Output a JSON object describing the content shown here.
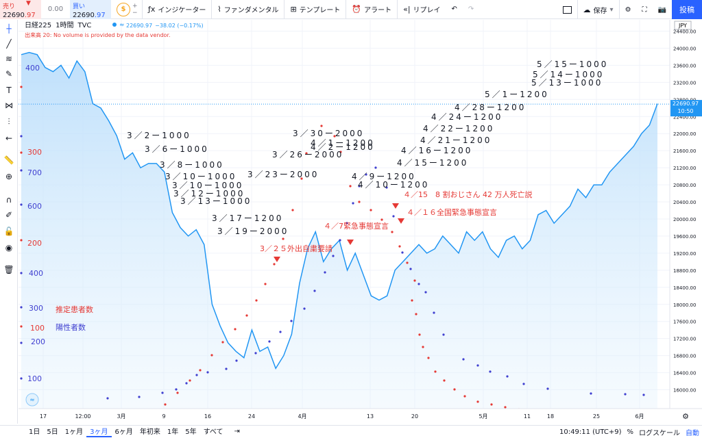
{
  "toolbar": {
    "sell_label": "売り",
    "sell_price_main": "22690",
    "sell_price_tail": ".97",
    "spread": "0.00",
    "buy_label": "買い",
    "buy_price_main": "22690",
    "buy_price_tail": ".97",
    "indicators": "インジケーター",
    "fundamentals": "ファンダメンタル",
    "template": "テンプレート",
    "alert": "アラート",
    "replay": "リプレイ",
    "save": "保存",
    "post": "投稿"
  },
  "legend": {
    "symbol": "日経225",
    "interval": "1時間",
    "source": "TVC",
    "price": "22690.97",
    "change": "−38.02 (−0.17%)",
    "volume_notice": "出来高 20: No volume is provided by the data vendor."
  },
  "price_axis": {
    "currency": "JPY",
    "ticks": [
      "24400.00",
      "24000.00",
      "23600.00",
      "23200.00",
      "22800.00",
      "22400.00",
      "22000.00",
      "21600.00",
      "21200.00",
      "20800.00",
      "20400.00",
      "20000.00",
      "19600.00",
      "19200.00",
      "18800.00",
      "18400.00",
      "18000.00",
      "17600.00",
      "17200.00",
      "16800.00",
      "16400.00",
      "16000.00"
    ],
    "last_price": "22690.97",
    "countdown": "10:50"
  },
  "time_axis": {
    "labels": [
      "17",
      "12:00",
      "3月",
      "9",
      "16",
      "24",
      "4月",
      "13",
      "20",
      "5月",
      "11",
      "18",
      "25",
      "6月"
    ]
  },
  "left_scale_labels": [
    {
      "text": "400",
      "color": "blue"
    },
    {
      "text": "300",
      "color": "red"
    },
    {
      "text": "700",
      "color": "blue"
    },
    {
      "text": "600",
      "color": "blue"
    },
    {
      "text": "200",
      "color": "red"
    },
    {
      "text": "400",
      "color": "blue"
    },
    {
      "text": "300",
      "color": "blue"
    },
    {
      "text": "100",
      "color": "red"
    },
    {
      "text": "200",
      "color": "blue"
    },
    {
      "text": "100",
      "color": "blue"
    }
  ],
  "legend_labels": {
    "estimated": "推定患者数",
    "positive": "陽性者数"
  },
  "annotations_dark": [
    "3／2ー1000",
    "3／6ー1000",
    "3／8ー1000",
    "3／10ー1000",
    "3／10ー1000",
    "3／12ー1000",
    "3／13ー1000",
    "3／17ー1200",
    "3／19ー2000",
    "3／23ー2000",
    "3／26ー2000",
    "3／30ー2000",
    "4／1ー1200",
    "4／2ー1200",
    "4／9ー1200",
    "4／10ー1200",
    "4／15ー1200",
    "4／16ー1200",
    "4／21ー1200",
    "4／22ー1200",
    "4／24ー1200",
    "4／28ー1200",
    "5／1ー1200",
    "5／13ー1000",
    "5／14ー1000",
    "5／15ー1000"
  ],
  "annotations_red": [
    "3／２５外出自粛要請",
    "４／7緊急事態宣言",
    "４／15　8 割おじさん 42 万人死亡説",
    "４／１６全国緊急事態宣言"
  ],
  "chart_data": {
    "type": "line",
    "title": "",
    "ylim": [
      15800,
      24600
    ],
    "series": [
      {
        "name": "日経225",
        "values": [
          23850,
          23900,
          23850,
          23550,
          23450,
          23600,
          23300,
          23700,
          23450,
          22700,
          22600,
          22300,
          21950,
          21400,
          21550,
          21200,
          21300,
          21300,
          21100,
          20150,
          19800,
          19600,
          19750,
          19400,
          18000,
          17500,
          17100,
          16900,
          16750,
          17400,
          16900,
          17000,
          16500,
          16800,
          17300,
          18500,
          19300,
          19700,
          19000,
          19300,
          19500,
          18800,
          19200,
          18700,
          18200,
          18100,
          18200,
          18800,
          19000,
          19200,
          19400,
          19200,
          19300,
          19600,
          19400,
          19200,
          19700,
          19500,
          19700,
          19300,
          19100,
          19500,
          19600,
          19300,
          19500,
          20100,
          20200,
          19900,
          20100,
          20300,
          20700,
          20500,
          20800,
          20800,
          21100,
          21300,
          21500,
          21700,
          22000,
          22200,
          22700
        ]
      }
    ],
    "estimated_patients_dots": [],
    "positive_cases_dots": []
  },
  "bottom": {
    "ranges": [
      "1日",
      "5日",
      "1ヶ月",
      "3ヶ月",
      "6ヶ月",
      "年初来",
      "1年",
      "5年",
      "すべて"
    ],
    "active_range": "3ヶ月",
    "time": "10:49:11 (UTC+9)",
    "percent": "%",
    "log": "ログスケール",
    "auto": "自動"
  },
  "colors": {
    "line": "#2196f3",
    "fill_top": "#bbdefb",
    "red": "#e53935",
    "blue": "#3f3fd0",
    "accent": "#2962ff"
  }
}
